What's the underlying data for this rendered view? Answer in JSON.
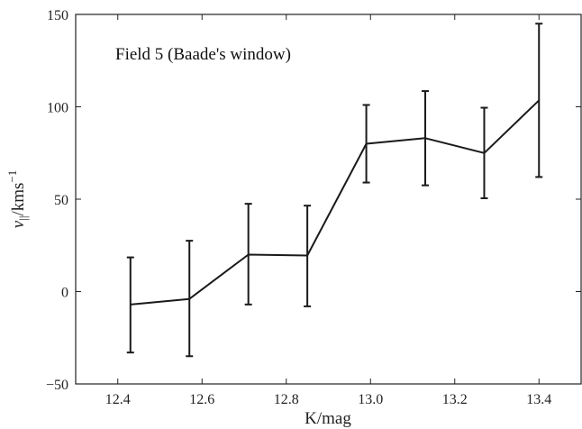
{
  "chart_data": {
    "type": "line",
    "annotation": "Field 5 (Baade's window)",
    "xlabel": "K/mag",
    "ylabel": "v",
    "ylabel_subscript": "||",
    "ylabel_unit": "/kms",
    "ylabel_superscript": "−1",
    "xlim": [
      12.3,
      13.5
    ],
    "ylim": [
      -50,
      150
    ],
    "x_ticks": [
      12.4,
      12.6,
      12.8,
      13.0,
      13.2,
      13.4
    ],
    "x_tick_labels": [
      "12.4",
      "12.6",
      "12.8",
      "13.0",
      "13.2",
      "13.4"
    ],
    "y_ticks": [
      -50,
      0,
      50,
      100,
      150
    ],
    "y_tick_labels": [
      "−50",
      "0",
      "50",
      "100",
      "150"
    ],
    "grid": false,
    "line_color": "#1a1a1a",
    "series": [
      {
        "x": [
          12.43,
          12.57,
          12.71,
          12.85,
          12.99,
          13.13,
          13.27,
          13.4
        ],
        "y": [
          -7,
          -4,
          20,
          19.5,
          80,
          83,
          75,
          103.5
        ],
        "err_low": [
          -33,
          -35,
          -7,
          -8,
          59,
          57.5,
          50.5,
          62
        ],
        "err_high": [
          18.5,
          27.5,
          47.5,
          46.5,
          101,
          108.5,
          99.5,
          145
        ]
      }
    ]
  }
}
